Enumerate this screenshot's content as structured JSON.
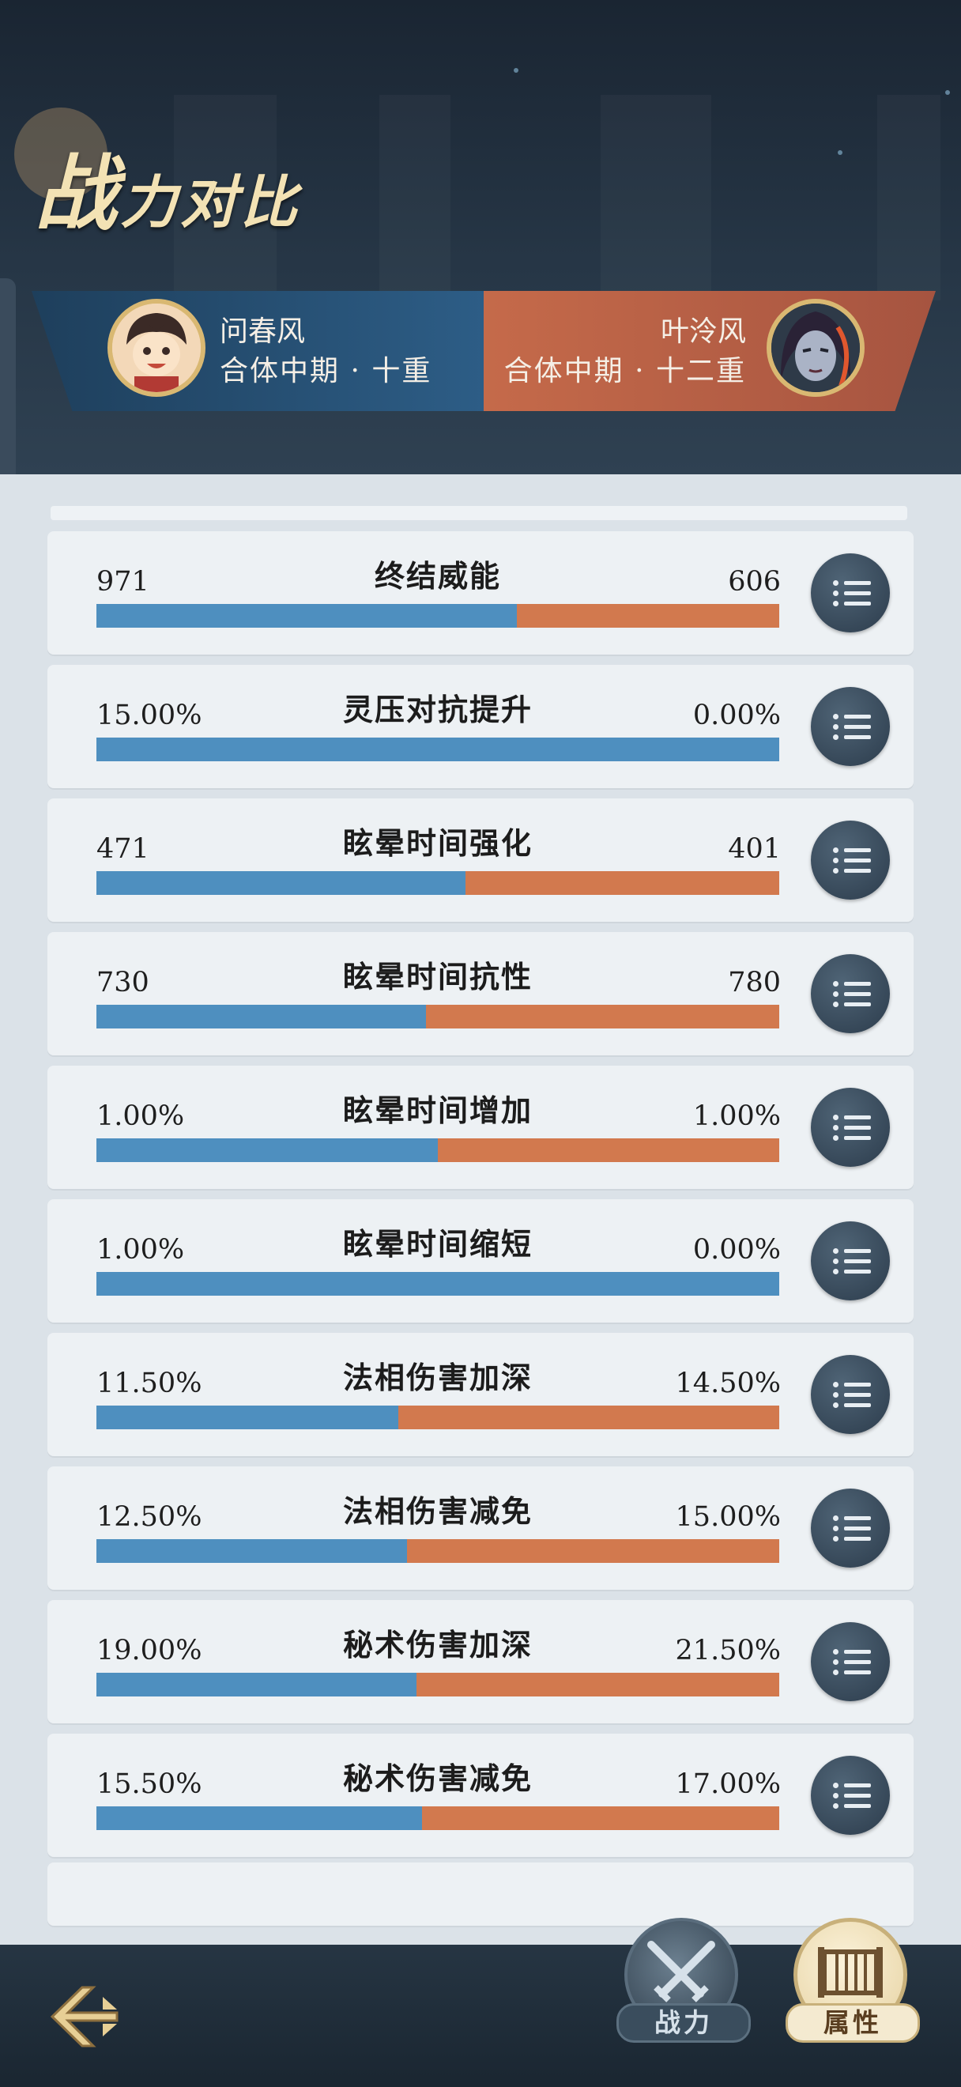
{
  "title": {
    "big": "战",
    "rest": "力对比"
  },
  "players": {
    "left": {
      "name": "问春风",
      "rank": "合体中期 · 十重",
      "color": "#2d5d86"
    },
    "right": {
      "name": "叶泠风",
      "rank": "合体中期 · 十二重",
      "color": "#c56a4a"
    }
  },
  "rows": [
    {
      "label": "终结威能",
      "left": "971",
      "right": "606",
      "left_share": 0.616
    },
    {
      "label": "灵压对抗提升",
      "left": "15.00%",
      "right": "0.00%",
      "left_share": 1.0
    },
    {
      "label": "眩晕时间强化",
      "left": "471",
      "right": "401",
      "left_share": 0.54
    },
    {
      "label": "眩晕时间抗性",
      "left": "730",
      "right": "780",
      "left_share": 0.483
    },
    {
      "label": "眩晕时间增加",
      "left": "1.00%",
      "right": "1.00%",
      "left_share": 0.5
    },
    {
      "label": "眩晕时间缩短",
      "left": "1.00%",
      "right": "0.00%",
      "left_share": 1.0
    },
    {
      "label": "法相伤害加深",
      "left": "11.50%",
      "right": "14.50%",
      "left_share": 0.442
    },
    {
      "label": "法相伤害减免",
      "left": "12.50%",
      "right": "15.00%",
      "left_share": 0.455
    },
    {
      "label": "秘术伤害加深",
      "left": "19.00%",
      "right": "21.50%",
      "left_share": 0.469
    },
    {
      "label": "秘术伤害减免",
      "left": "15.50%",
      "right": "17.00%",
      "left_share": 0.477
    }
  ],
  "nav": {
    "power_label": "战力",
    "attr_label": "属性"
  },
  "colors": {
    "left_bar": "#4e8fbf",
    "right_bar": "#d2794e"
  },
  "icons": {
    "row_button": "list-icon",
    "back": "back-arrow-icon",
    "power": "crossed-swords-icon",
    "attr": "scroll-icon"
  }
}
